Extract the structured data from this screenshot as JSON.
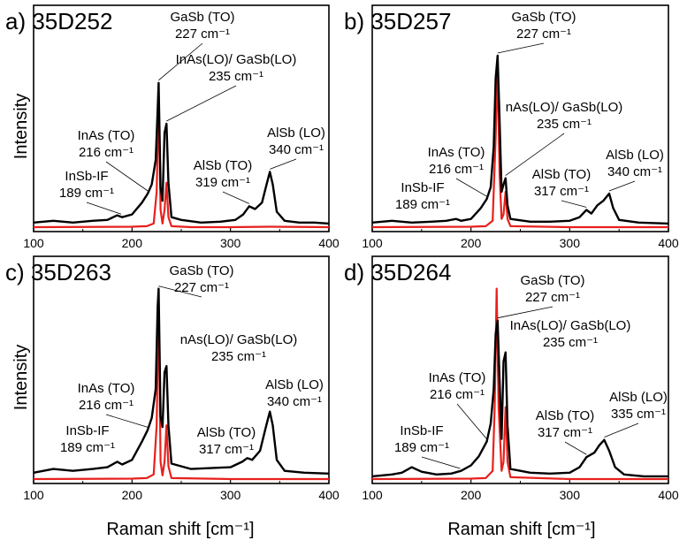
{
  "chart_data": [
    {
      "type": "line",
      "panel_label": "a)",
      "sample": "35D252",
      "xlabel": "Raman shift [cm⁻¹]",
      "ylabel": "Intensity",
      "xlim": [
        100,
        400
      ],
      "xticks": [
        100,
        200,
        300,
        400
      ],
      "y_ticks_shown": false,
      "grid": false,
      "legend": "none",
      "series": [
        {
          "color": "#000000",
          "points": [
            [
              100,
              6
            ],
            [
              120,
              8
            ],
            [
              140,
              6
            ],
            [
              160,
              8
            ],
            [
              175,
              9
            ],
            [
              185,
              14
            ],
            [
              190,
              12
            ],
            [
              200,
              15
            ],
            [
              210,
              28
            ],
            [
              216,
              38
            ],
            [
              220,
              48
            ],
            [
              224,
              75
            ],
            [
              226,
              130
            ],
            [
              227,
              160
            ],
            [
              229,
              45
            ],
            [
              231,
              30
            ],
            [
              233,
              105
            ],
            [
              235,
              115
            ],
            [
              237,
              50
            ],
            [
              240,
              12
            ],
            [
              250,
              9
            ],
            [
              270,
              6
            ],
            [
              290,
              7
            ],
            [
              305,
              9
            ],
            [
              313,
              15
            ],
            [
              319,
              24
            ],
            [
              325,
              21
            ],
            [
              332,
              28
            ],
            [
              336,
              45
            ],
            [
              340,
              62
            ],
            [
              343,
              48
            ],
            [
              347,
              18
            ],
            [
              355,
              8
            ],
            [
              370,
              6
            ],
            [
              385,
              6
            ],
            [
              400,
              5
            ]
          ]
        },
        {
          "color": "#e8201c",
          "points": [
            [
              100,
              1
            ],
            [
              200,
              1.5
            ],
            [
              215,
              2
            ],
            [
              222,
              5
            ],
            [
              225,
              40
            ],
            [
              227,
              145
            ],
            [
              229,
              20
            ],
            [
              231,
              5
            ],
            [
              233,
              20
            ],
            [
              235,
              50
            ],
            [
              237,
              12
            ],
            [
              240,
              2
            ],
            [
              260,
              1
            ],
            [
              300,
              1
            ],
            [
              340,
              1.5
            ],
            [
              400,
              1
            ]
          ]
        }
      ],
      "annotations": [
        {
          "text": "GaSb (TO)",
          "line2": "227 cm⁻¹",
          "x": 227
        },
        {
          "text": "InAs(LO)/ GaSb(LO)",
          "line2": "235 cm⁻¹",
          "x": 235
        },
        {
          "text": "InAs (TO)",
          "line2": "216 cm⁻¹",
          "x": 216
        },
        {
          "text": "InSb-IF",
          "line2": "189 cm⁻¹",
          "x": 189
        },
        {
          "text": "AlSb (TO)",
          "line2": "319 cm⁻¹",
          "x": 319
        },
        {
          "text": "AlSb (LO)",
          "line2": "340 cm⁻¹",
          "x": 340
        }
      ]
    },
    {
      "type": "line",
      "panel_label": "b)",
      "sample": "35D257",
      "xlabel": "Raman shift [cm⁻¹]",
      "ylabel": "",
      "xlim": [
        100,
        400
      ],
      "xticks": [
        100,
        200,
        300,
        400
      ],
      "y_ticks_shown": false,
      "grid": false,
      "legend": "none",
      "series": [
        {
          "color": "#000000",
          "points": [
            [
              100,
              6
            ],
            [
              120,
              8
            ],
            [
              140,
              6
            ],
            [
              160,
              7
            ],
            [
              175,
              8
            ],
            [
              185,
              10
            ],
            [
              190,
              8
            ],
            [
              200,
              10
            ],
            [
              210,
              22
            ],
            [
              216,
              32
            ],
            [
              220,
              45
            ],
            [
              223,
              90
            ],
            [
              225,
              165
            ],
            [
              227,
              190
            ],
            [
              229,
              120
            ],
            [
              231,
              40
            ],
            [
              233,
              48
            ],
            [
              235,
              55
            ],
            [
              237,
              25
            ],
            [
              240,
              10
            ],
            [
              260,
              7
            ],
            [
              280,
              7
            ],
            [
              300,
              8
            ],
            [
              310,
              12
            ],
            [
              317,
              20
            ],
            [
              322,
              16
            ],
            [
              328,
              25
            ],
            [
              334,
              30
            ],
            [
              340,
              38
            ],
            [
              344,
              22
            ],
            [
              350,
              9
            ],
            [
              370,
              6
            ],
            [
              400,
              5
            ]
          ]
        },
        {
          "color": "#e8201c",
          "points": [
            [
              100,
              1
            ],
            [
              200,
              1.5
            ],
            [
              215,
              2
            ],
            [
              222,
              8
            ],
            [
              225,
              100
            ],
            [
              227,
              180
            ],
            [
              229,
              60
            ],
            [
              231,
              10
            ],
            [
              233,
              15
            ],
            [
              235,
              40
            ],
            [
              237,
              10
            ],
            [
              240,
              2
            ],
            [
              300,
              1
            ],
            [
              400,
              1
            ]
          ]
        }
      ],
      "annotations": [
        {
          "text": "GaSb (TO)",
          "line2": "227 cm⁻¹",
          "x": 227
        },
        {
          "text": "nAs(LO)/ GaSb(LO)",
          "line2": "235 cm⁻¹",
          "x": 235
        },
        {
          "text": "InAs (TO)",
          "line2": "216 cm⁻¹",
          "x": 216
        },
        {
          "text": "InSb-IF",
          "line2": "189 cm⁻¹",
          "x": 189
        },
        {
          "text": "AlSb (TO)",
          "line2": "317 cm⁻¹",
          "x": 317
        },
        {
          "text": "AlSb (LO)",
          "line2": "340 cm⁻¹",
          "x": 340
        }
      ]
    },
    {
      "type": "line",
      "panel_label": "c)",
      "sample": "35D263",
      "xlabel": "Raman shift [cm⁻¹]",
      "ylabel": "Intensity",
      "xlim": [
        100,
        400
      ],
      "xticks": [
        100,
        200,
        300,
        400
      ],
      "y_ticks_shown": false,
      "grid": false,
      "legend": "none",
      "series": [
        {
          "color": "#000000",
          "points": [
            [
              100,
              8
            ],
            [
              120,
              12
            ],
            [
              140,
              10
            ],
            [
              160,
              12
            ],
            [
              175,
              14
            ],
            [
              185,
              20
            ],
            [
              190,
              17
            ],
            [
              200,
              22
            ],
            [
              210,
              42
            ],
            [
              216,
              55
            ],
            [
              220,
              68
            ],
            [
              224,
              100
            ],
            [
              226,
              190
            ],
            [
              227,
              210
            ],
            [
              229,
              70
            ],
            [
              231,
              58
            ],
            [
              233,
              118
            ],
            [
              235,
              125
            ],
            [
              237,
              60
            ],
            [
              240,
              18
            ],
            [
              260,
              12
            ],
            [
              280,
              13
            ],
            [
              300,
              14
            ],
            [
              312,
              20
            ],
            [
              317,
              24
            ],
            [
              322,
              22
            ],
            [
              330,
              32
            ],
            [
              336,
              58
            ],
            [
              340,
              75
            ],
            [
              343,
              60
            ],
            [
              347,
              22
            ],
            [
              355,
              10
            ],
            [
              375,
              8
            ],
            [
              400,
              7
            ]
          ]
        },
        {
          "color": "#e8201c",
          "points": [
            [
              100,
              1
            ],
            [
              200,
              1.5
            ],
            [
              215,
              2
            ],
            [
              222,
              6
            ],
            [
              225,
              60
            ],
            [
              227,
              200
            ],
            [
              229,
              20
            ],
            [
              231,
              5
            ],
            [
              233,
              20
            ],
            [
              235,
              60
            ],
            [
              237,
              15
            ],
            [
              240,
              2
            ],
            [
              300,
              1
            ],
            [
              400,
              1
            ]
          ]
        }
      ],
      "annotations": [
        {
          "text": "GaSb (TO)",
          "line2": "227 cm⁻¹",
          "x": 227
        },
        {
          "text": "nAs(LO)/ GaSb(LO)",
          "line2": "235 cm⁻¹",
          "x": 235
        },
        {
          "text": "InAs (TO)",
          "line2": "216 cm⁻¹",
          "x": 216
        },
        {
          "text": "InSb-IF",
          "line2": "189 cm⁻¹",
          "x": 189
        },
        {
          "text": "AlSb (TO)",
          "line2": "317 cm⁻¹",
          "x": 317
        },
        {
          "text": "AlSb (LO)",
          "line2": "340 cm⁻¹",
          "x": 340
        }
      ]
    },
    {
      "type": "line",
      "panel_label": "d)",
      "sample": "35D264",
      "xlabel": "Raman shift [cm⁻¹]",
      "ylabel": "",
      "xlim": [
        100,
        400
      ],
      "xticks": [
        100,
        200,
        300,
        400
      ],
      "y_ticks_shown": false,
      "grid": false,
      "legend": "none",
      "series": [
        {
          "color": "#000000",
          "points": [
            [
              100,
              4
            ],
            [
              120,
              6
            ],
            [
              130,
              8
            ],
            [
              140,
              14
            ],
            [
              150,
              9
            ],
            [
              165,
              6
            ],
            [
              180,
              7
            ],
            [
              190,
              10
            ],
            [
              200,
              16
            ],
            [
              208,
              26
            ],
            [
              216,
              42
            ],
            [
              220,
              62
            ],
            [
              223,
              100
            ],
            [
              225,
              160
            ],
            [
              227,
              175
            ],
            [
              229,
              110
            ],
            [
              231,
              45
            ],
            [
              233,
              130
            ],
            [
              235,
              140
            ],
            [
              237,
              60
            ],
            [
              240,
              12
            ],
            [
              260,
              8
            ],
            [
              280,
              7
            ],
            [
              300,
              8
            ],
            [
              310,
              14
            ],
            [
              317,
              25
            ],
            [
              325,
              30
            ],
            [
              330,
              38
            ],
            [
              335,
              44
            ],
            [
              340,
              32
            ],
            [
              346,
              14
            ],
            [
              355,
              6
            ],
            [
              375,
              4
            ],
            [
              400,
              4
            ]
          ]
        },
        {
          "color": "#e8201c",
          "points": [
            [
              100,
              1
            ],
            [
              200,
              1.5
            ],
            [
              215,
              2
            ],
            [
              222,
              10
            ],
            [
              224,
              80
            ],
            [
              226,
              210
            ],
            [
              228,
              80
            ],
            [
              231,
              10
            ],
            [
              233,
              20
            ],
            [
              235,
              80
            ],
            [
              237,
              20
            ],
            [
              240,
              3
            ],
            [
              300,
              1
            ],
            [
              400,
              1
            ]
          ]
        }
      ],
      "annotations": [
        {
          "text": "GaSb (TO)",
          "line2": "227 cm⁻¹",
          "x": 227
        },
        {
          "text": "InAs(LO)/ GaSb(LO)",
          "line2": "235 cm⁻¹",
          "x": 235
        },
        {
          "text": "InAs (TO)",
          "line2": "216 cm⁻¹",
          "x": 216
        },
        {
          "text": "InSb-IF",
          "line2": "189 cm⁻¹",
          "x": 189
        },
        {
          "text": "AlSb (TO)",
          "line2": "317 cm⁻¹",
          "x": 317
        },
        {
          "text": "AlSb (LO)",
          "line2": "335 cm⁻¹",
          "x": 335
        }
      ]
    }
  ]
}
